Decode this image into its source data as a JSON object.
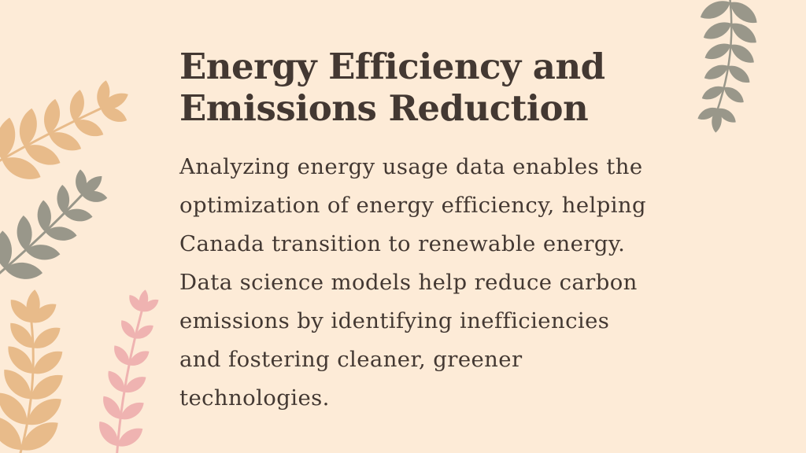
{
  "colors": {
    "background": "#fdebd7",
    "text": "#433832",
    "leaf_tan": "#e8bb8a",
    "leaf_olive": "#99978a",
    "leaf_pink": "#efb3b1"
  },
  "slide": {
    "title_lines": [
      "Energy Efficiency and",
      "Emissions Reduction"
    ],
    "body_lines": [
      "Analyzing energy usage data enables the",
      "optimization of energy efficiency, helping",
      "Canada transition to renewable energy.",
      "Data science models help reduce carbon",
      "emissions by identifying inefficiencies",
      "and fostering cleaner, greener",
      "technologies."
    ]
  },
  "decorations": {
    "left": "leafy-branches-icon",
    "right": "leafy-branch-icon"
  }
}
